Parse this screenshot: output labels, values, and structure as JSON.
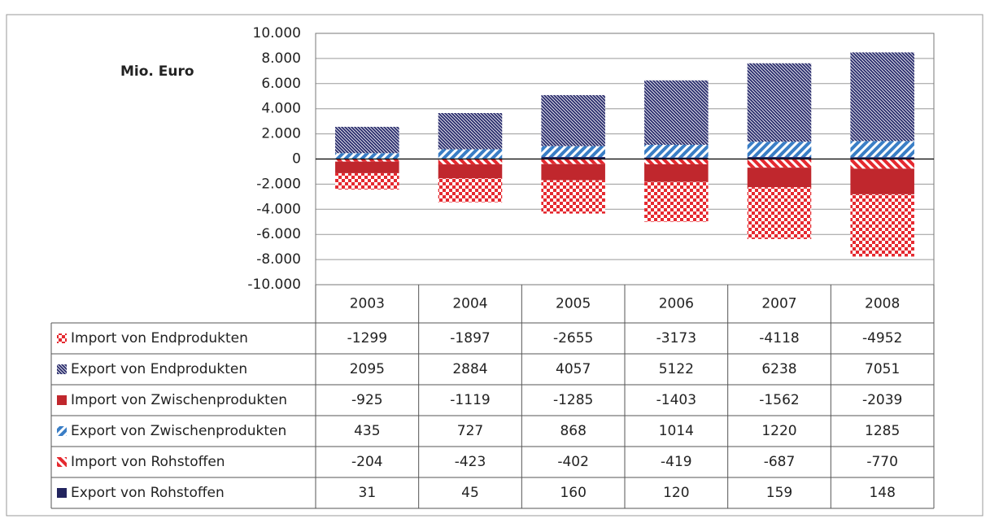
{
  "chart_data": {
    "type": "bar",
    "stacked": true,
    "y_label": "Mio. Euro",
    "categories": [
      "2003",
      "2004",
      "2005",
      "2006",
      "2007",
      "2008"
    ],
    "series": [
      {
        "name": "Import von Endprodukten",
        "color": "#e5292f",
        "pattern": "checker",
        "values": [
          -1299,
          -1897,
          -2655,
          -3173,
          -4118,
          -4952
        ]
      },
      {
        "name": "Export von Endprodukten",
        "color": "#2c2f6e",
        "pattern": "hatch",
        "values": [
          2095,
          2884,
          4057,
          5122,
          6238,
          7051
        ]
      },
      {
        "name": "Import von Zwischenprodukten",
        "color": "#c0272d",
        "pattern": "solid",
        "values": [
          -925,
          -1119,
          -1285,
          -1403,
          -1562,
          -2039
        ]
      },
      {
        "name": "Export von Zwischenprodukten",
        "color": "#3a7ec6",
        "pattern": "stripe",
        "values": [
          435,
          727,
          868,
          1014,
          1220,
          1285
        ]
      },
      {
        "name": "Import von Rohstoffen",
        "color": "#e5292f",
        "pattern": "stripe-back",
        "values": [
          -204,
          -423,
          -402,
          -419,
          -687,
          -770
        ]
      },
      {
        "name": "Export von Rohstoffen",
        "color": "#22245e",
        "pattern": "solid",
        "values": [
          31,
          45,
          160,
          120,
          159,
          148
        ]
      }
    ],
    "ylim": [
      -10000,
      10000
    ],
    "yticks": [
      {
        "value": -10000,
        "label": "-10.000"
      },
      {
        "value": -8000,
        "label": "-8.000"
      },
      {
        "value": -6000,
        "label": "-6.000"
      },
      {
        "value": -4000,
        "label": "-4.000"
      },
      {
        "value": -2000,
        "label": "-2.000"
      },
      0,
      {
        "value": 2000,
        "label": "2.000"
      },
      {
        "value": 4000,
        "label": "4.000"
      },
      {
        "value": 6000,
        "label": "6.000"
      },
      {
        "value": 8000,
        "label": "8.000"
      },
      {
        "value": 10000,
        "label": "10.000"
      }
    ],
    "grid": true
  }
}
